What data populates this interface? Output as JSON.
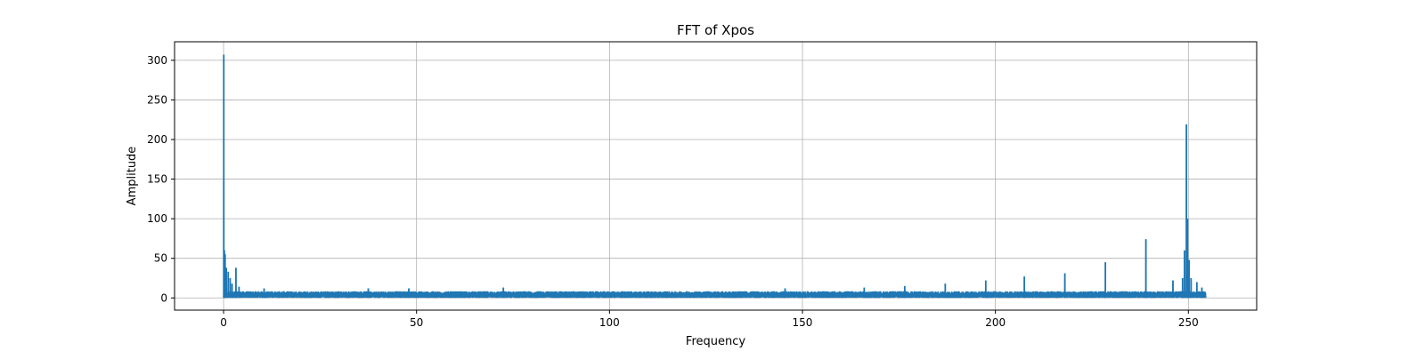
{
  "chart_data": {
    "type": "line",
    "title": "FFT of Xpos",
    "xlabel": "Frequency",
    "ylabel": "Amplitude",
    "xlim": [
      -12.7,
      267.7
    ],
    "ylim": [
      -15.4,
      323.4
    ],
    "xticks": [
      0,
      50,
      100,
      150,
      200,
      250
    ],
    "yticks": [
      0,
      50,
      100,
      150,
      200,
      250,
      300
    ],
    "grid": true,
    "series_color": "#1f77b4",
    "x_max": 254.5,
    "noise_floor": [
      0,
      8.5
    ],
    "peaks": [
      {
        "x": 0.05,
        "y": 307
      },
      {
        "x": 0.2,
        "y": 60
      },
      {
        "x": 0.4,
        "y": 55
      },
      {
        "x": 0.7,
        "y": 38
      },
      {
        "x": 1.2,
        "y": 33
      },
      {
        "x": 1.7,
        "y": 25
      },
      {
        "x": 2.2,
        "y": 18
      },
      {
        "x": 3.2,
        "y": 38
      },
      {
        "x": 4.0,
        "y": 14
      },
      {
        "x": 10.5,
        "y": 12
      },
      {
        "x": 37.5,
        "y": 12
      },
      {
        "x": 48.0,
        "y": 12
      },
      {
        "x": 72.5,
        "y": 13
      },
      {
        "x": 145.5,
        "y": 12
      },
      {
        "x": 166.0,
        "y": 13
      },
      {
        "x": 176.5,
        "y": 15
      },
      {
        "x": 187.0,
        "y": 18
      },
      {
        "x": 197.5,
        "y": 22
      },
      {
        "x": 207.5,
        "y": 27
      },
      {
        "x": 218.0,
        "y": 31
      },
      {
        "x": 228.5,
        "y": 45
      },
      {
        "x": 239.0,
        "y": 74
      },
      {
        "x": 246.0,
        "y": 22
      },
      {
        "x": 248.5,
        "y": 25
      },
      {
        "x": 249.0,
        "y": 60
      },
      {
        "x": 249.5,
        "y": 219
      },
      {
        "x": 249.8,
        "y": 100
      },
      {
        "x": 250.2,
        "y": 48
      },
      {
        "x": 250.7,
        "y": 25
      },
      {
        "x": 252.2,
        "y": 20
      },
      {
        "x": 253.5,
        "y": 13
      }
    ]
  }
}
